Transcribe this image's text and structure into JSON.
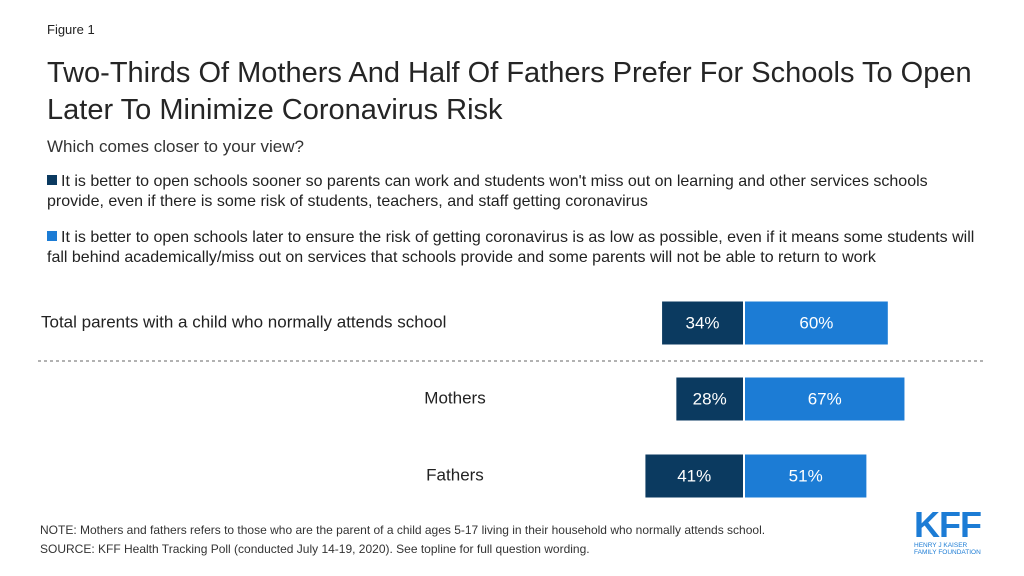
{
  "figure_label": "Figure 1",
  "chart_data": {
    "type": "bar",
    "orientation": "diverging",
    "title": "Two-Thirds Of Mothers And Half Of Fathers Prefer For Schools To Open Later To Minimize Coronavirus Risk",
    "subtitle": "Which comes closer to your view?",
    "categories": [
      "Total parents with a child who normally attends school",
      "Mothers",
      "Fathers"
    ],
    "series": [
      {
        "name": "It is better to open schools sooner so parents can work and students won't miss out on learning and other services schools provide, even if there is some risk of students, teachers, and staff getting coronavirus",
        "color": "#0b3a60",
        "values": [
          34,
          28,
          41
        ],
        "value_labels": [
          "34%",
          "28%",
          "41%"
        ]
      },
      {
        "name": "It is better to open schools later to ensure the risk of getting coronavirus is as low as possible, even if it means some students will fall behind academically/miss out on services that schools provide and some parents will not be able to return to work",
        "color": "#1c7cd5",
        "values": [
          60,
          67,
          51
        ],
        "value_labels": [
          "60%",
          "67%",
          "51%"
        ]
      }
    ]
  },
  "notes": [
    "NOTE: Mothers and fathers refers to those who are the parent of a child ages 5-17 living in their household who normally attends school.",
    "SOURCE: KFF Health Tracking Poll (conducted July 14-19, 2020). See topline for full question wording."
  ],
  "logo": {
    "text": "KFF",
    "subtext": [
      "HENRY J KAISER",
      "FAMILY FOUNDATION"
    ]
  }
}
